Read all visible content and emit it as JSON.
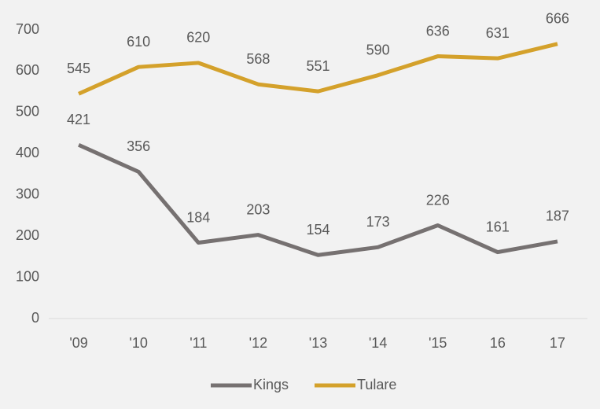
{
  "chart_data": {
    "type": "line",
    "categories": [
      "'09",
      "'10",
      "'11",
      "'12",
      "'13",
      "'14",
      "'15",
      "16",
      "17"
    ],
    "series": [
      {
        "name": "Kings",
        "color": "#767171",
        "values": [
          421,
          356,
          184,
          203,
          154,
          173,
          226,
          161,
          187
        ]
      },
      {
        "name": "Tulare",
        "color": "#d4a12b",
        "values": [
          545,
          610,
          620,
          568,
          551,
          590,
          636,
          631,
          666
        ]
      }
    ],
    "ylim": [
      0,
      700
    ],
    "yticks": [
      0,
      100,
      200,
      300,
      400,
      500,
      600,
      700
    ],
    "grid": false,
    "legend": "bottom"
  }
}
